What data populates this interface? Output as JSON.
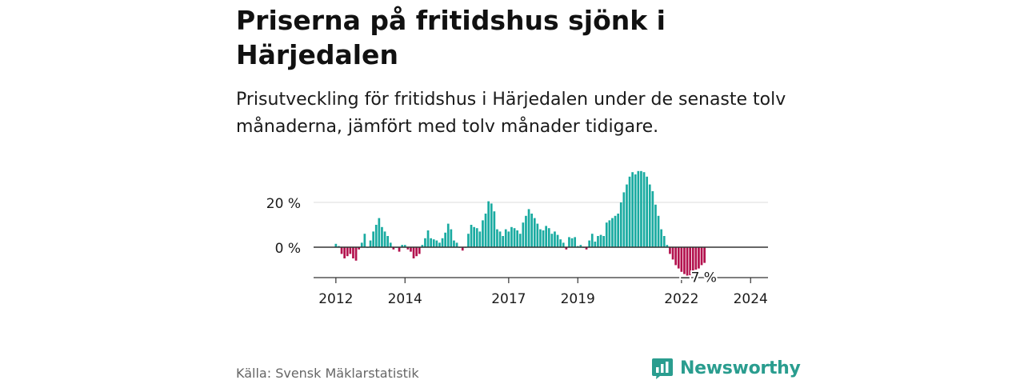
{
  "title": "Priserna på fritidshus sjönk i Härjedalen",
  "subtitle": "Prisutveckling för fritidshus i Härjedalen under de senaste tolv månaderna, jämfört med tolv månader tidigare.",
  "source": "Källa: Svensk Mäklarstatistik",
  "logo_text": "Newsworthy",
  "colors": {
    "positive": "#1aaba1",
    "negative": "#b3124e",
    "text": "#1a1a1a",
    "grid": "#dddddd",
    "brand": "#2a9d8f"
  },
  "chart_data": {
    "type": "bar",
    "title": "Priserna på fritidshus sjönk i Härjedalen",
    "xlabel": "",
    "ylabel": "",
    "unit": "%",
    "start_year": 2012,
    "start_month": 1,
    "ylim": [
      -14,
      37
    ],
    "y_ticks": [
      {
        "value": 20,
        "label": "20 %"
      },
      {
        "value": 0,
        "label": "0 %"
      }
    ],
    "x_ticks": [
      {
        "year": 2012,
        "label": "2012"
      },
      {
        "year": 2014,
        "label": "2014"
      },
      {
        "year": 2017,
        "label": "2017"
      },
      {
        "year": 2019,
        "label": "2019"
      },
      {
        "year": 2022,
        "label": "2022"
      },
      {
        "year": 2024,
        "label": "2024"
      }
    ],
    "annotation": {
      "label": "−7 %",
      "value": -7
    },
    "values": [
      1.5,
      0.5,
      -3,
      -5,
      -4,
      -3,
      -5,
      -6,
      -1,
      2,
      6,
      0,
      3,
      7,
      10,
      13,
      9,
      7,
      5,
      2,
      -1,
      0,
      -2,
      1,
      1,
      -1,
      -2,
      -5,
      -4,
      -3,
      1,
      4,
      7.5,
      4,
      3.5,
      3,
      2,
      4,
      6.5,
      10.5,
      8,
      3,
      2,
      0,
      -1.5,
      0,
      6,
      10,
      9,
      8.5,
      7,
      12,
      15,
      20.5,
      19.5,
      16,
      8,
      7,
      5,
      8,
      7,
      9,
      8.5,
      7.5,
      6,
      11,
      14,
      17,
      15,
      13,
      10.5,
      8,
      7.5,
      9.5,
      8.5,
      6,
      7,
      5.5,
      3.5,
      2,
      -1,
      4.5,
      4,
      4.5,
      0.5,
      1,
      0,
      -1,
      3,
      6,
      2.5,
      5,
      5.5,
      5,
      11,
      12,
      13,
      14,
      15,
      20,
      24.5,
      28,
      31.5,
      33.5,
      32.5,
      34,
      34,
      33.5,
      31.5,
      28,
      25,
      19,
      14,
      8,
      5,
      1,
      -3,
      -5.5,
      -8,
      -9.5,
      -11,
      -12,
      -13,
      -12.5,
      -11,
      -10,
      -9.5,
      -8,
      -7
    ]
  }
}
